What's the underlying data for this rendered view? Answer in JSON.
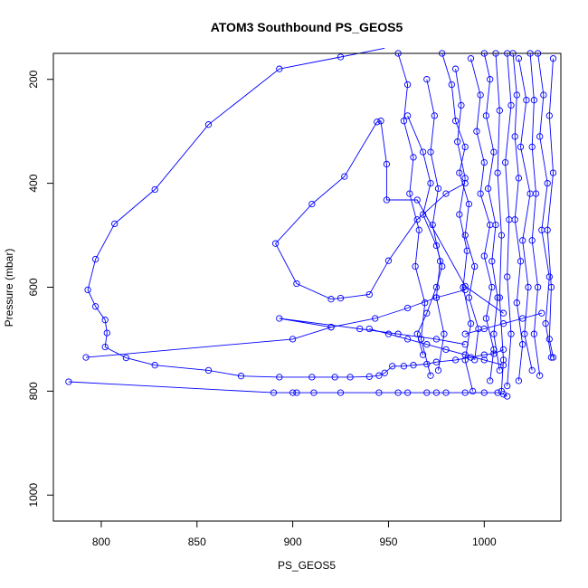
{
  "chart_data": {
    "type": "line",
    "title": "ATOM3 Southbound PS_GEOS5",
    "xlabel": "PS_GEOS5",
    "ylabel": "Pressure (mbar)",
    "xlim": [
      775,
      1040
    ],
    "ylim": [
      1050,
      150
    ],
    "y_inverted": true,
    "x_ticks": [
      800,
      850,
      900,
      950,
      1000
    ],
    "y_ticks": [
      200,
      400,
      600,
      800,
      1000
    ],
    "grid": false,
    "legend": "none",
    "series_color": "#0000ff",
    "marker": "open-circle",
    "series": [
      {
        "points": [
          [
            948,
            140
          ],
          [
            925,
            157
          ],
          [
            893,
            180
          ],
          [
            856,
            287
          ],
          [
            828,
            412
          ],
          [
            807,
            478
          ],
          [
            797,
            546
          ],
          [
            793,
            605
          ],
          [
            797,
            637
          ],
          [
            802,
            663
          ],
          [
            803,
            688
          ],
          [
            802,
            715
          ],
          [
            813,
            736
          ],
          [
            828,
            750
          ],
          [
            856,
            760
          ],
          [
            873,
            771
          ],
          [
            893,
            773
          ],
          [
            910,
            773
          ],
          [
            922,
            773
          ],
          [
            930,
            773
          ],
          [
            940,
            772
          ],
          [
            945,
            770
          ],
          [
            948,
            765
          ],
          [
            952,
            752
          ],
          [
            958,
            752
          ],
          [
            963,
            750
          ],
          [
            970,
            748
          ],
          [
            975,
            744
          ],
          [
            985,
            740
          ],
          [
            993,
            735
          ],
          [
            1000,
            730
          ],
          [
            1005,
            728
          ],
          [
            1010,
            720
          ]
        ]
      },
      {
        "points": [
          [
            783,
            782
          ],
          [
            890,
            803
          ],
          [
            900,
            803
          ],
          [
            902,
            803
          ],
          [
            911,
            803
          ],
          [
            925,
            803
          ],
          [
            945,
            803
          ],
          [
            955,
            803
          ],
          [
            960,
            803
          ],
          [
            970,
            803
          ],
          [
            975,
            803
          ],
          [
            980,
            803
          ],
          [
            990,
            803
          ],
          [
            1000,
            803
          ],
          [
            1007,
            803
          ],
          [
            1010,
            806
          ],
          [
            1012,
            810
          ]
        ]
      },
      {
        "points": [
          [
            792,
            735
          ],
          [
            900,
            700
          ],
          [
            920,
            677
          ],
          [
            943,
            660
          ],
          [
            960,
            640
          ],
          [
            975,
            620
          ],
          [
            990,
            605
          ]
        ]
      },
      {
        "points": [
          [
            920,
            677
          ],
          [
            893,
            660
          ],
          [
            935,
            680
          ],
          [
            955,
            690
          ],
          [
            975,
            700
          ],
          [
            990,
            710
          ]
        ]
      },
      {
        "points": [
          [
            1010,
            650
          ],
          [
            990,
            598
          ],
          [
            965,
            432
          ],
          [
            949,
            432
          ],
          [
            949,
            363
          ],
          [
            946,
            280
          ],
          [
            944,
            282
          ],
          [
            927,
            387
          ],
          [
            910,
            440
          ],
          [
            891,
            516
          ],
          [
            902,
            593
          ],
          [
            920,
            623
          ],
          [
            925,
            621
          ],
          [
            940,
            614
          ],
          [
            950,
            549
          ],
          [
            965,
            470
          ],
          [
            980,
            420
          ],
          [
            990,
            400
          ]
        ]
      },
      {
        "points": [
          [
            960,
            270
          ],
          [
            968,
            340
          ],
          [
            972,
            400
          ],
          [
            968,
            460
          ],
          [
            975,
            520
          ],
          [
            978,
            560
          ],
          [
            975,
            600
          ],
          [
            970,
            650
          ],
          [
            965,
            690
          ],
          [
            968,
            730
          ]
        ]
      },
      {
        "points": [
          [
            978,
            150
          ],
          [
            983,
            210
          ],
          [
            985,
            280
          ],
          [
            990,
            330
          ],
          [
            987,
            380
          ],
          [
            992,
            440
          ],
          [
            990,
            500
          ],
          [
            995,
            560
          ],
          [
            992,
            620
          ],
          [
            997,
            680
          ],
          [
            995,
            740
          ]
        ]
      },
      {
        "points": [
          [
            993,
            160
          ],
          [
            998,
            230
          ],
          [
            996,
            300
          ],
          [
            1000,
            360
          ],
          [
            998,
            420
          ],
          [
            1003,
            480
          ],
          [
            1000,
            540
          ],
          [
            1004,
            600
          ],
          [
            1001,
            660
          ],
          [
            1005,
            720
          ],
          [
            1003,
            780
          ]
        ]
      },
      {
        "points": [
          [
            1006,
            150
          ],
          [
            1008,
            260
          ],
          [
            1007,
            380
          ],
          [
            1009,
            500
          ],
          [
            1008,
            620
          ],
          [
            1010,
            740
          ],
          [
            1009,
            800
          ]
        ]
      },
      {
        "points": [
          [
            1012,
            150
          ],
          [
            1014,
            250
          ],
          [
            1011,
            360
          ],
          [
            1013,
            470
          ],
          [
            1012,
            580
          ],
          [
            1014,
            690
          ],
          [
            1012,
            790
          ]
        ]
      },
      {
        "points": [
          [
            1018,
            160
          ],
          [
            1022,
            240
          ],
          [
            1019,
            330
          ],
          [
            1024,
            420
          ],
          [
            1020,
            510
          ],
          [
            1023,
            600
          ],
          [
            1021,
            690
          ],
          [
            1025,
            760
          ]
        ]
      },
      {
        "points": [
          [
            1028,
            150
          ],
          [
            1031,
            230
          ],
          [
            1029,
            310
          ],
          [
            1033,
            400
          ],
          [
            1030,
            490
          ],
          [
            1034,
            580
          ],
          [
            1032,
            670
          ],
          [
            1035,
            735
          ]
        ]
      },
      {
        "points": [
          [
            1036,
            160
          ],
          [
            1034,
            270
          ],
          [
            1036,
            380
          ],
          [
            1033,
            490
          ],
          [
            1035,
            600
          ],
          [
            1034,
            700
          ],
          [
            1036,
            735
          ]
        ]
      },
      {
        "points": [
          [
            955,
            150
          ],
          [
            960,
            210
          ],
          [
            958,
            280
          ],
          [
            963,
            350
          ],
          [
            961,
            420
          ],
          [
            966,
            490
          ],
          [
            964,
            560
          ],
          [
            969,
            630
          ],
          [
            967,
            700
          ],
          [
            972,
            770
          ]
        ]
      },
      {
        "points": [
          [
            1000,
            150
          ],
          [
            1003,
            200
          ],
          [
            1001,
            270
          ],
          [
            1005,
            340
          ],
          [
            1002,
            410
          ],
          [
            1006,
            480
          ],
          [
            1004,
            550
          ],
          [
            1007,
            620
          ],
          [
            1005,
            690
          ],
          [
            1008,
            760
          ]
        ]
      },
      {
        "points": [
          [
            985,
            180
          ],
          [
            988,
            250
          ],
          [
            986,
            320
          ],
          [
            990,
            390
          ],
          [
            987,
            460
          ],
          [
            991,
            530
          ],
          [
            989,
            600
          ],
          [
            993,
            670
          ],
          [
            990,
            740
          ],
          [
            994,
            800
          ]
        ]
      },
      {
        "points": [
          [
            1015,
            150
          ],
          [
            1017,
            230
          ],
          [
            1016,
            310
          ],
          [
            1018,
            390
          ],
          [
            1016,
            470
          ],
          [
            1019,
            550
          ],
          [
            1017,
            630
          ],
          [
            1020,
            710
          ],
          [
            1018,
            780
          ]
        ]
      },
      {
        "points": [
          [
            970,
            200
          ],
          [
            974,
            270
          ],
          [
            972,
            340
          ],
          [
            976,
            410
          ],
          [
            973,
            480
          ],
          [
            977,
            550
          ],
          [
            975,
            620
          ],
          [
            979,
            690
          ],
          [
            976,
            760
          ]
        ]
      },
      {
        "points": [
          [
            1024,
            150
          ],
          [
            1026,
            240
          ],
          [
            1025,
            330
          ],
          [
            1027,
            420
          ],
          [
            1025,
            510
          ],
          [
            1028,
            600
          ],
          [
            1026,
            690
          ],
          [
            1029,
            770
          ]
        ]
      },
      {
        "points": [
          [
            940,
            680
          ],
          [
            950,
            690
          ],
          [
            960,
            700
          ],
          [
            970,
            710
          ],
          [
            980,
            720
          ],
          [
            990,
            730
          ],
          [
            1000,
            740
          ],
          [
            1010,
            750
          ]
        ]
      },
      {
        "points": [
          [
            990,
            690
          ],
          [
            1000,
            680
          ],
          [
            1010,
            670
          ],
          [
            1020,
            660
          ],
          [
            1030,
            650
          ]
        ]
      }
    ]
  }
}
